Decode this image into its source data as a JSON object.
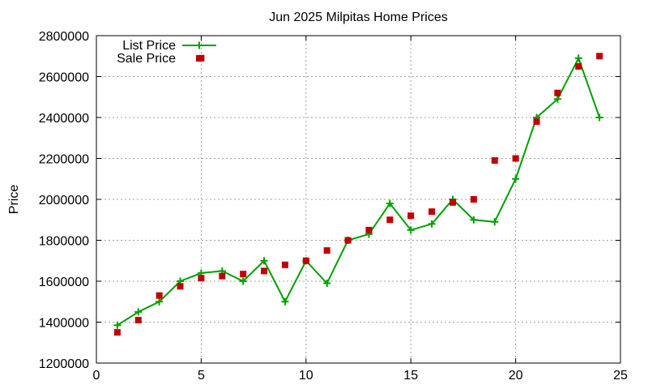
{
  "chart_data": {
    "type": "line",
    "title": "Jun 2025 Milpitas Home Prices",
    "xlabel": "",
    "ylabel": "Price",
    "xlim": [
      0,
      25
    ],
    "ylim": [
      1200000,
      2800000
    ],
    "x_ticks": [
      0,
      5,
      10,
      15,
      20,
      25
    ],
    "y_ticks": [
      1200000,
      1400000,
      1600000,
      1800000,
      2000000,
      2200000,
      2400000,
      2600000,
      2800000
    ],
    "grid": true,
    "legend_position": "top-left",
    "series": [
      {
        "name": "List Price",
        "style": "line-with-plus-markers",
        "color": "#00a000",
        "points": [
          [
            1,
            1385000
          ],
          [
            2,
            1450000
          ],
          [
            3,
            1500000
          ],
          [
            4,
            1600000
          ],
          [
            5,
            1640000
          ],
          [
            6,
            1650000
          ],
          [
            7,
            1600000
          ],
          [
            8,
            1700000
          ],
          [
            9,
            1500000
          ],
          [
            10,
            1700000
          ],
          [
            11,
            1590000
          ],
          [
            12,
            1800000
          ],
          [
            13,
            1830000
          ],
          [
            14,
            1980000
          ],
          [
            15,
            1850000
          ],
          [
            16,
            1880000
          ],
          [
            17,
            2000000
          ],
          [
            18,
            1900000
          ],
          [
            19,
            1890000
          ],
          [
            20,
            2100000
          ],
          [
            21,
            2400000
          ],
          [
            22,
            2490000
          ],
          [
            23,
            2690000
          ],
          [
            24,
            2400000
          ]
        ]
      },
      {
        "name": "Sale Price",
        "style": "square-markers",
        "color": "#c00000",
        "points": [
          [
            1,
            1350000
          ],
          [
            2,
            1410000
          ],
          [
            3,
            1530000
          ],
          [
            4,
            1575000
          ],
          [
            5,
            1615000
          ],
          [
            5,
            2690000
          ],
          [
            6,
            1625000
          ],
          [
            7,
            1635000
          ],
          [
            8,
            1650000
          ],
          [
            9,
            1680000
          ],
          [
            10,
            1700000
          ],
          [
            11,
            1750000
          ],
          [
            12,
            1800000
          ],
          [
            13,
            1850000
          ],
          [
            14,
            1900000
          ],
          [
            15,
            1920000
          ],
          [
            16,
            1940000
          ],
          [
            17,
            1985000
          ],
          [
            18,
            2000000
          ],
          [
            19,
            2190000
          ],
          [
            20,
            2200000
          ],
          [
            21,
            2380000
          ],
          [
            22,
            2520000
          ],
          [
            23,
            2650000
          ],
          [
            24,
            2700000
          ]
        ]
      }
    ]
  }
}
